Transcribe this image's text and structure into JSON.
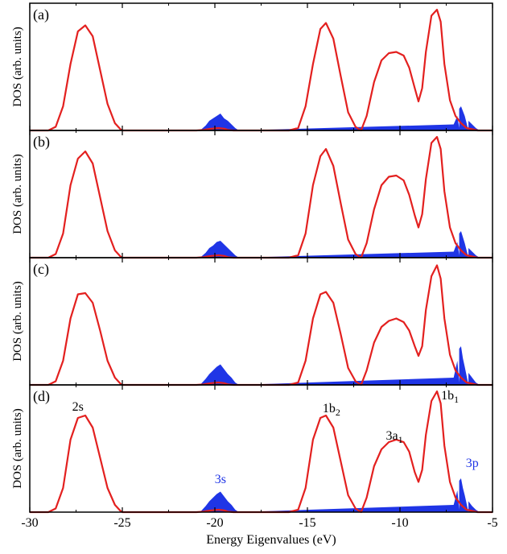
{
  "colors": {
    "red": "#e3201f",
    "blue": "#1f35e6",
    "axis": "#000000"
  },
  "xaxis": {
    "label": "Energy Eigenvalues (eV)",
    "ticks": [
      "-30",
      "-25",
      "-20",
      "-15",
      "-10",
      "-5"
    ]
  },
  "chart_data": [
    {
      "type": "area",
      "panel_label": "(a)",
      "ylabel": "DOS (arb. units)",
      "xlim": [
        -30,
        -5
      ],
      "ylim": [
        0,
        1
      ],
      "series": [
        {
          "kind": "line",
          "values_x": [
            -30,
            -29,
            -28.6,
            -28.2,
            -27.8,
            -27.4,
            -27.0,
            -26.6,
            -26.2,
            -25.8,
            -25.4,
            -25.1,
            -25,
            -21,
            -20.6,
            -20.2,
            -19.8,
            -19.5,
            -19.3,
            -19.0,
            -18,
            -16,
            -15.5,
            -15.1,
            -14.7,
            -14.3,
            -14.0,
            -13.6,
            -13.2,
            -12.8,
            -12.4,
            -12.1,
            -11.8,
            -11.4,
            -11.0,
            -10.6,
            -10.2,
            -9.8,
            -9.5,
            -9.2,
            -9.0,
            -8.8,
            -8.6,
            -8.3,
            -8.0,
            -7.8,
            -7.6,
            -7.3,
            -7.0,
            -6.7,
            -6.4,
            -6.1,
            -5.8,
            -5.5,
            -5
          ],
          "values_y": [
            0,
            0,
            0.03,
            0.2,
            0.55,
            0.82,
            0.87,
            0.78,
            0.5,
            0.22,
            0.06,
            0.01,
            0,
            0,
            0.005,
            0.015,
            0.02,
            0.015,
            0.005,
            0,
            0,
            0,
            0.02,
            0.2,
            0.55,
            0.84,
            0.89,
            0.76,
            0.45,
            0.15,
            0.03,
            0,
            0.12,
            0.4,
            0.58,
            0.64,
            0.65,
            0.62,
            0.52,
            0.35,
            0.24,
            0.35,
            0.65,
            0.95,
            1.0,
            0.9,
            0.55,
            0.25,
            0.12,
            0.06,
            0.02,
            0.01,
            0,
            0,
            0
          ]
        },
        {
          "kind": "fill",
          "values_x": [
            -20.8,
            -20.5,
            -20.3,
            -20.1,
            -19.9,
            -19.7,
            -19.5,
            -19.3,
            -19.1,
            -18.9,
            -18.7,
            -6.3,
            -6.8,
            -7.1,
            -6.9,
            -6.8,
            -6.7,
            -6.6,
            -6.5,
            -6.3,
            -6.1,
            -5.9,
            -5.7
          ],
          "values_y": [
            0,
            0.04,
            0.08,
            0.1,
            0.12,
            0.14,
            0.1,
            0.08,
            0.05,
            0.02,
            0,
            0,
            0.02,
            0.05,
            0.12,
            0.18,
            0.2,
            0.16,
            0.12,
            0.08,
            0.05,
            0.02,
            0
          ]
        }
      ]
    },
    {
      "type": "area",
      "panel_label": "(b)",
      "ylabel": "DOS (arb. units)",
      "xlim": [
        -30,
        -5
      ],
      "ylim": [
        0,
        1
      ],
      "series": [
        {
          "kind": "line",
          "values_x": [
            -30,
            -29,
            -28.6,
            -28.2,
            -27.8,
            -27.4,
            -27.0,
            -26.6,
            -26.2,
            -25.8,
            -25.4,
            -25.1,
            -25,
            -21,
            -20.6,
            -20.2,
            -19.8,
            -19.5,
            -19.3,
            -19.0,
            -18,
            -16,
            -15.5,
            -15.1,
            -14.7,
            -14.3,
            -14.0,
            -13.6,
            -13.2,
            -12.8,
            -12.4,
            -12.1,
            -11.8,
            -11.4,
            -11.0,
            -10.6,
            -10.2,
            -9.8,
            -9.5,
            -9.2,
            -9.0,
            -8.8,
            -8.6,
            -8.3,
            -8.0,
            -7.8,
            -7.6,
            -7.3,
            -7.0,
            -6.7,
            -6.4,
            -6.1,
            -5.8,
            -5.5,
            -5
          ],
          "values_y": [
            0,
            0,
            0.03,
            0.2,
            0.6,
            0.82,
            0.88,
            0.78,
            0.5,
            0.22,
            0.06,
            0.01,
            0,
            0,
            0.005,
            0.015,
            0.02,
            0.015,
            0.005,
            0,
            0,
            0,
            0.02,
            0.2,
            0.6,
            0.84,
            0.9,
            0.76,
            0.45,
            0.15,
            0.03,
            0,
            0.12,
            0.4,
            0.6,
            0.67,
            0.68,
            0.64,
            0.52,
            0.35,
            0.25,
            0.36,
            0.65,
            0.95,
            1.0,
            0.9,
            0.55,
            0.25,
            0.12,
            0.06,
            0.02,
            0.01,
            0,
            0,
            0
          ]
        },
        {
          "kind": "fill",
          "values_x": [
            -20.8,
            -20.5,
            -20.3,
            -20.1,
            -19.9,
            -19.7,
            -19.5,
            -19.3,
            -19.1,
            -18.9,
            -18.7,
            -6.3,
            -6.8,
            -7.1,
            -6.9,
            -6.8,
            -6.7,
            -6.6,
            -6.5,
            -6.3,
            -6.1,
            -5.9,
            -5.7
          ],
          "values_y": [
            0,
            0.04,
            0.08,
            0.1,
            0.13,
            0.14,
            0.11,
            0.08,
            0.05,
            0.02,
            0,
            0,
            0.02,
            0.05,
            0.13,
            0.2,
            0.22,
            0.17,
            0.12,
            0.08,
            0.05,
            0.02,
            0
          ]
        }
      ]
    },
    {
      "type": "area",
      "panel_label": "(c)",
      "ylabel": "DOS (arb. units)",
      "xlim": [
        -30,
        -5
      ],
      "ylim": [
        0,
        1
      ],
      "series": [
        {
          "kind": "line",
          "values_x": [
            -30,
            -29,
            -28.6,
            -28.2,
            -27.8,
            -27.4,
            -27.0,
            -26.6,
            -26.2,
            -25.8,
            -25.4,
            -25.1,
            -25,
            -21,
            -20.6,
            -20.2,
            -19.8,
            -19.5,
            -19.3,
            -19.0,
            -18,
            -16,
            -15.5,
            -15.1,
            -14.7,
            -14.3,
            -14.0,
            -13.6,
            -13.2,
            -12.8,
            -12.4,
            -12.1,
            -11.8,
            -11.4,
            -11.0,
            -10.6,
            -10.2,
            -9.8,
            -9.5,
            -9.2,
            -9.0,
            -8.8,
            -8.6,
            -8.3,
            -8.0,
            -7.8,
            -7.6,
            -7.3,
            -7.0,
            -6.7,
            -6.4,
            -6.1,
            -5.8,
            -5.5,
            -5
          ],
          "values_y": [
            0,
            0,
            0.03,
            0.2,
            0.55,
            0.75,
            0.76,
            0.68,
            0.45,
            0.2,
            0.06,
            0.01,
            0,
            0,
            0.005,
            0.015,
            0.02,
            0.015,
            0.005,
            0,
            0,
            0,
            0.02,
            0.2,
            0.55,
            0.75,
            0.77,
            0.68,
            0.42,
            0.14,
            0.03,
            0,
            0.12,
            0.35,
            0.48,
            0.53,
            0.55,
            0.52,
            0.45,
            0.32,
            0.24,
            0.32,
            0.62,
            0.9,
            0.99,
            0.88,
            0.55,
            0.25,
            0.12,
            0.06,
            0.02,
            0.01,
            0,
            0,
            0
          ]
        },
        {
          "kind": "fill",
          "values_x": [
            -20.8,
            -20.5,
            -20.3,
            -20.1,
            -19.9,
            -19.7,
            -19.5,
            -19.3,
            -19.1,
            -18.9,
            -18.7,
            -6.3,
            -6.8,
            -7.1,
            -6.9,
            -6.8,
            -6.7,
            -6.6,
            -6.5,
            -6.3,
            -6.1,
            -5.9,
            -5.7
          ],
          "values_y": [
            0,
            0.05,
            0.09,
            0.12,
            0.15,
            0.17,
            0.13,
            0.09,
            0.06,
            0.02,
            0,
            0,
            0.02,
            0.06,
            0.2,
            0.3,
            0.32,
            0.22,
            0.15,
            0.1,
            0.06,
            0.02,
            0
          ]
        }
      ]
    },
    {
      "type": "area",
      "panel_label": "(d)",
      "ylabel": "DOS (arb. units)",
      "xlim": [
        -30,
        -5
      ],
      "ylim": [
        0,
        1
      ],
      "annotations": [
        {
          "text": "2s",
          "sub": "",
          "x": -27.4,
          "color": "black"
        },
        {
          "text": "3s",
          "sub": "",
          "x": -19.7,
          "color": "blue"
        },
        {
          "text": "1b",
          "sub": "2",
          "x": -13.7,
          "color": "black"
        },
        {
          "text": "3a",
          "sub": "1",
          "x": -10.3,
          "color": "black"
        },
        {
          "text": "1b",
          "sub": "1",
          "x": -7.3,
          "color": "black"
        },
        {
          "text": "3p",
          "sub": "",
          "x": -6.1,
          "color": "blue"
        }
      ],
      "series": [
        {
          "kind": "line",
          "values_x": [
            -30,
            -29,
            -28.6,
            -28.2,
            -27.8,
            -27.4,
            -27.0,
            -26.6,
            -26.2,
            -25.8,
            -25.4,
            -25.1,
            -25,
            -21,
            -20.6,
            -20.2,
            -19.8,
            -19.5,
            -19.3,
            -19.0,
            -18,
            -16,
            -15.5,
            -15.1,
            -14.7,
            -14.3,
            -14.0,
            -13.6,
            -13.2,
            -12.8,
            -12.4,
            -12.1,
            -11.8,
            -11.4,
            -11.0,
            -10.6,
            -10.2,
            -9.8,
            -9.5,
            -9.2,
            -9.0,
            -8.8,
            -8.6,
            -8.3,
            -8.0,
            -7.8,
            -7.6,
            -7.3,
            -7.0,
            -6.7,
            -6.4,
            -6.1,
            -5.8,
            -5.5,
            -5
          ],
          "values_y": [
            0,
            0,
            0.03,
            0.2,
            0.6,
            0.78,
            0.8,
            0.7,
            0.45,
            0.2,
            0.06,
            0.01,
            0,
            0,
            0.005,
            0.015,
            0.02,
            0.015,
            0.005,
            0,
            0,
            0,
            0.02,
            0.2,
            0.6,
            0.78,
            0.8,
            0.7,
            0.42,
            0.14,
            0.03,
            0,
            0.12,
            0.38,
            0.52,
            0.58,
            0.6,
            0.58,
            0.5,
            0.33,
            0.25,
            0.35,
            0.64,
            0.92,
            1.0,
            0.9,
            0.55,
            0.25,
            0.12,
            0.06,
            0.02,
            0.01,
            0,
            0,
            0
          ]
        },
        {
          "kind": "fill",
          "values_x": [
            -20.8,
            -20.5,
            -20.3,
            -20.1,
            -19.9,
            -19.7,
            -19.5,
            -19.3,
            -19.1,
            -18.9,
            -18.7,
            -6.3,
            -6.8,
            -7.1,
            -6.9,
            -6.8,
            -6.7,
            -6.6,
            -6.5,
            -6.3,
            -6.1,
            -5.9,
            -5.7
          ],
          "values_y": [
            0,
            0.05,
            0.09,
            0.12,
            0.15,
            0.17,
            0.13,
            0.09,
            0.06,
            0.02,
            0,
            0,
            0.02,
            0.06,
            0.18,
            0.26,
            0.28,
            0.2,
            0.14,
            0.09,
            0.05,
            0.02,
            0
          ]
        }
      ]
    }
  ]
}
